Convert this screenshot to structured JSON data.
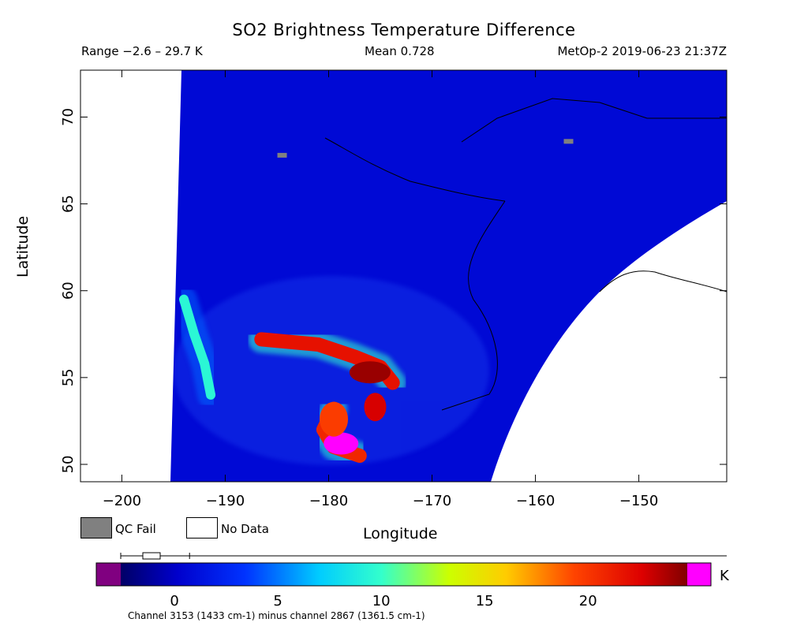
{
  "chart_data": {
    "type": "heatmap",
    "title": "SO2 Brightness Temperature Difference",
    "info": {
      "range": "Range −2.6 – 29.7 K",
      "mean": "Mean 0.728",
      "satellite": "MetOp-2 2019-06-23 21:37Z"
    },
    "xlabel": "Longitude",
    "ylabel": "Latitude",
    "xlim": [
      -204,
      -141.5
    ],
    "ylim": [
      49,
      72.7
    ],
    "xticks": [
      -200,
      -190,
      -180,
      -170,
      -160,
      -150
    ],
    "yticks": [
      50,
      55,
      60,
      65,
      70
    ],
    "background_value_K": 0.5,
    "plumes": [
      {
        "name": "main-plume",
        "value_K": 21,
        "path": [
          [
            -186.5,
            57.2
          ],
          [
            -181,
            56.9
          ],
          [
            -177.5,
            56.2
          ],
          [
            -175,
            55.6
          ],
          [
            -173.8,
            54.7
          ]
        ]
      },
      {
        "name": "west-arc",
        "value_K": 9,
        "path": [
          [
            -194,
            59.5
          ],
          [
            -193,
            57.5
          ],
          [
            -192,
            55.8
          ],
          [
            -191.4,
            54
          ]
        ]
      },
      {
        "name": "southern-mass",
        "value_K": 20,
        "path": [
          [
            -179.5,
            53.2
          ],
          [
            -180.5,
            52
          ],
          [
            -179.5,
            51
          ],
          [
            -177,
            50.5
          ]
        ]
      }
    ],
    "qc_fail_points": [
      [
        -184.5,
        67.8
      ],
      [
        -156.8,
        68.6
      ]
    ],
    "colorbar": {
      "label": "K",
      "ticks": [
        0,
        5,
        10,
        15,
        20
      ],
      "min": -2.6,
      "max": 24.8,
      "low_color": "#800080",
      "high_color": "#ff00ff"
    },
    "legend": {
      "qc_fail": "QC Fail",
      "no_data": "No Data",
      "qc_color": "#808080"
    },
    "footnote": "Channel 3153 (1433 cm-1) minus channel 2867 (1361.5 cm-1)"
  }
}
